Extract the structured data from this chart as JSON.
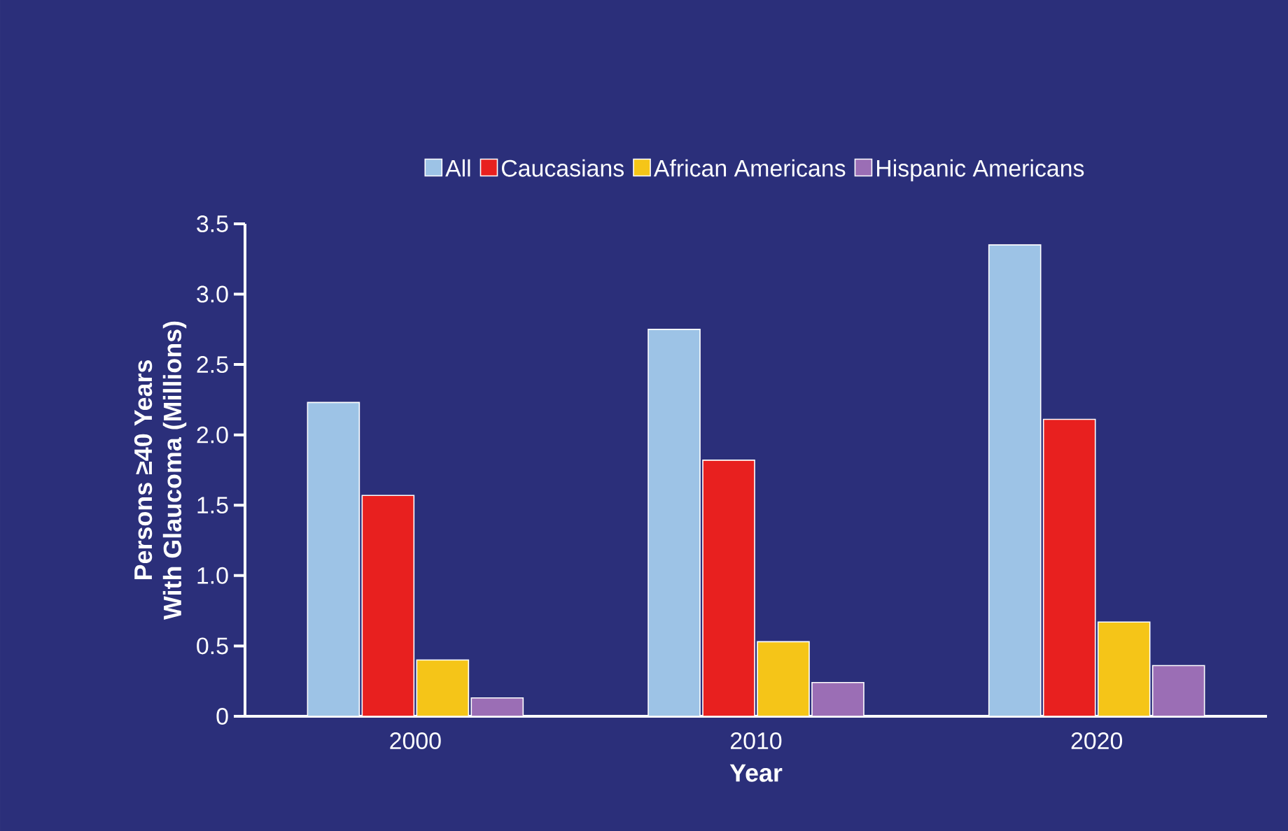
{
  "chart_data": {
    "type": "bar",
    "xlabel": "Year",
    "ylabel": "Persons ≥40 Years\nWith Glaucoma (Millions)",
    "categories": [
      "2000",
      "2010",
      "2020"
    ],
    "series": [
      {
        "name": "All",
        "color": "#9dc3e6",
        "values": [
          2.23,
          2.75,
          3.35
        ]
      },
      {
        "name": "Caucasians",
        "color": "#e8201f",
        "values": [
          1.57,
          1.82,
          2.11
        ]
      },
      {
        "name": "African Americans",
        "color": "#f5c518",
        "values": [
          0.4,
          0.53,
          0.67
        ]
      },
      {
        "name": "Hispanic Americans",
        "color": "#9b6eb5",
        "values": [
          0.13,
          0.24,
          0.36
        ]
      }
    ],
    "ylim": [
      0,
      3.5
    ],
    "yticks": [
      0,
      0.5,
      {
        "value": 1,
        "label": "1.0"
      },
      1.5,
      {
        "value": 2,
        "label": "2.0"
      },
      2.5,
      {
        "value": 3,
        "label": "3.0"
      },
      3.5
    ],
    "legend": "top",
    "grid": false
  }
}
